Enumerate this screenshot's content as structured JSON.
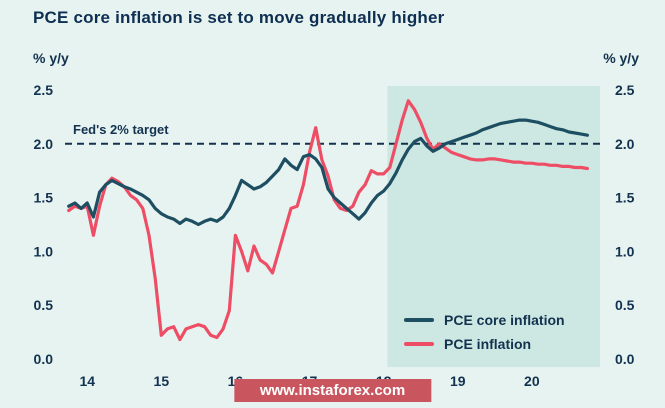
{
  "title": "PCE core inflation is set to move gradually higher",
  "watermark": "www.instaforex.com",
  "chart_data": {
    "type": "line",
    "title": "PCE core inflation is set to move gradually higher",
    "ylabel_left": "% y/y",
    "ylabel_right": "% y/y",
    "xlim": [
      13.7,
      20.92
    ],
    "ylim": [
      0,
      2.5
    ],
    "yticks": [
      0.0,
      0.5,
      1.0,
      1.5,
      2.0,
      2.5
    ],
    "xticks": [
      14,
      15,
      16,
      17,
      18,
      19,
      20
    ],
    "grid": false,
    "legend_position": "bottom-right",
    "target_line": {
      "value": 2.0,
      "label": "Fed's 2% target"
    },
    "forecast_region": {
      "from": 18.05,
      "to": 20.92
    },
    "colors": {
      "background": "#e7f3f0",
      "forecast_shade": "#cde8e2",
      "core_line": "#1d4e62",
      "headline_line": "#ee4d66",
      "text": "#12324f",
      "watermark_bg": "#c9565e",
      "watermark_text": "#ffffff"
    },
    "x_start": 13.75,
    "x_step": 0.0833333,
    "series": [
      {
        "name": "PCE core inflation",
        "color": "#1d4e62",
        "values": [
          1.42,
          1.45,
          1.4,
          1.45,
          1.32,
          1.55,
          1.62,
          1.66,
          1.63,
          1.6,
          1.58,
          1.55,
          1.52,
          1.48,
          1.4,
          1.35,
          1.32,
          1.3,
          1.26,
          1.3,
          1.28,
          1.25,
          1.28,
          1.3,
          1.28,
          1.32,
          1.4,
          1.52,
          1.66,
          1.62,
          1.58,
          1.6,
          1.64,
          1.7,
          1.76,
          1.86,
          1.8,
          1.76,
          1.88,
          1.9,
          1.86,
          1.78,
          1.58,
          1.5,
          1.45,
          1.4,
          1.35,
          1.3,
          1.36,
          1.45,
          1.52,
          1.56,
          1.63,
          1.73,
          1.85,
          1.95,
          2.02,
          2.05,
          1.98,
          1.93,
          1.96,
          2.0,
          2.02,
          2.04,
          2.06,
          2.08,
          2.1,
          2.13,
          2.15,
          2.17,
          2.19,
          2.2,
          2.21,
          2.22,
          2.22,
          2.21,
          2.2,
          2.18,
          2.16,
          2.14,
          2.13,
          2.11,
          2.1,
          2.09,
          2.08
        ]
      },
      {
        "name": "PCE inflation",
        "color": "#ee4d66",
        "values": [
          1.38,
          1.42,
          1.4,
          1.42,
          1.15,
          1.42,
          1.62,
          1.68,
          1.65,
          1.6,
          1.52,
          1.48,
          1.4,
          1.15,
          0.75,
          0.22,
          0.28,
          0.3,
          0.18,
          0.28,
          0.3,
          0.32,
          0.3,
          0.22,
          0.2,
          0.28,
          0.45,
          1.15,
          1.0,
          0.82,
          1.05,
          0.92,
          0.88,
          0.8,
          1.0,
          1.2,
          1.4,
          1.42,
          1.62,
          1.92,
          2.15,
          1.85,
          1.7,
          1.48,
          1.4,
          1.38,
          1.42,
          1.55,
          1.62,
          1.75,
          1.72,
          1.72,
          1.78,
          2.0,
          2.22,
          2.4,
          2.32,
          2.2,
          2.05,
          1.95,
          2.0,
          1.96,
          1.92,
          1.9,
          1.88,
          1.86,
          1.85,
          1.85,
          1.86,
          1.86,
          1.85,
          1.84,
          1.83,
          1.83,
          1.82,
          1.82,
          1.81,
          1.81,
          1.8,
          1.8,
          1.79,
          1.79,
          1.78,
          1.78,
          1.77
        ]
      }
    ]
  }
}
